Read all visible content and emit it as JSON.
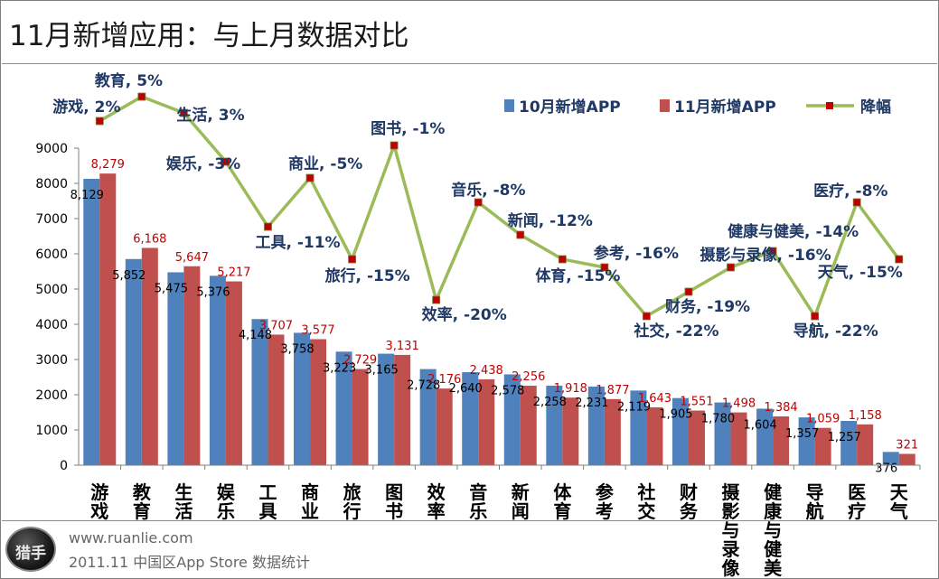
{
  "page": {
    "title": "11月新增应用：与上月数据对比",
    "footer_url": "www.ruanlie.com",
    "footer_note": "2011.11 中国区App Store 数据统计",
    "logo_text": "猎手",
    "logo_icon": "hunter-logo-icon"
  },
  "colors": {
    "oct_bar": "#4f81bd",
    "nov_bar": "#c0504d",
    "decline_line": "#9bbb59",
    "decline_marker": "#c00000",
    "point_label": "#1f3864",
    "nov_value_label": "#c00000",
    "oct_value_label": "#000000"
  },
  "chart_data": {
    "type": "bar",
    "title": "",
    "xlabel": "",
    "ylabel": "",
    "ylim": [
      0,
      9000
    ],
    "yticks": [
      0,
      1000,
      2000,
      3000,
      4000,
      5000,
      6000,
      7000,
      8000,
      9000
    ],
    "grid": false,
    "legend_position": "top-right",
    "categories": [
      "游戏",
      "教育",
      "生活",
      "娱乐",
      "工具",
      "商业",
      "旅行",
      "图书",
      "效率",
      "音乐",
      "新闻",
      "体育",
      "参考",
      "社交",
      "财务",
      "摄影与录像",
      "健康与健美",
      "导航",
      "医疗",
      "天气"
    ],
    "series": [
      {
        "name": "10月新增APP",
        "type": "bar",
        "values": [
          8129,
          5852,
          5475,
          5376,
          4148,
          3758,
          3223,
          3165,
          2728,
          2640,
          2578,
          2258,
          2231,
          2119,
          1905,
          1780,
          1604,
          1357,
          1257,
          376
        ],
        "labels": [
          "8,129",
          "5,852",
          "5,475",
          "5,376",
          "4,148",
          "3,758",
          "3,223",
          "3,165",
          "2,728",
          "2,640",
          "2,578",
          "2,258",
          "2,231",
          "2,119",
          "1,905",
          "1,780",
          "1,604",
          "1,357",
          "1,257",
          "376"
        ]
      },
      {
        "name": "11月新增APP",
        "type": "bar",
        "values": [
          8279,
          6168,
          5647,
          5217,
          3707,
          3577,
          2729,
          3131,
          2176,
          2438,
          2256,
          1918,
          1877,
          1643,
          1551,
          1498,
          1384,
          1059,
          1158,
          321
        ],
        "labels": [
          "8,279",
          "6,168",
          "5,647",
          "5,217",
          "3,707",
          "3,577",
          "2,729",
          "3,131",
          "2,176",
          "2,438",
          "2,256",
          "1,918",
          "1,877",
          "1,643",
          "1,551",
          "1,498",
          "1,384",
          "1,059",
          "1,158",
          "321"
        ]
      },
      {
        "name": "降幅",
        "type": "line",
        "unit": "%",
        "values": [
          2,
          5,
          3,
          -3,
          -11,
          -5,
          -15,
          -1,
          -20,
          -8,
          -12,
          -15,
          -16,
          -22,
          -19,
          -16,
          -14,
          -22,
          -8,
          -15
        ],
        "labels": [
          "游戏, 2%",
          "教育, 5%",
          "生活, 3%",
          "娱乐, -3%",
          "工具, -11%",
          "商业, -5%",
          "旅行, -15%",
          "图书, -1%",
          "效率, -20%",
          "音乐, -8%",
          "新闻, -12%",
          "体育, -15%",
          "参考, -16%",
          "社交, -22%",
          "财务, -19%",
          "摄影与录像, -16%",
          "健康与健美, -14%",
          "导航, -22%",
          "医疗, -8%",
          "天气, -15%"
        ]
      }
    ]
  }
}
